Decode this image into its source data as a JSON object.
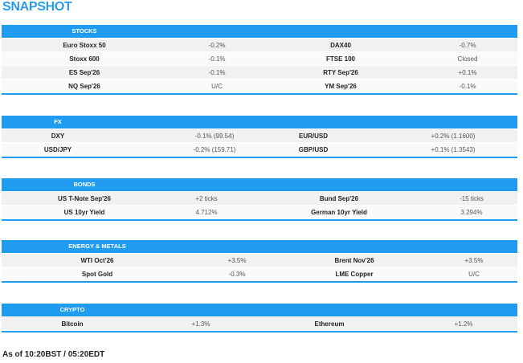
{
  "header": {
    "title": "SNAPSHOT"
  },
  "sections": [
    {
      "title": "STOCKS",
      "rows": [
        [
          "Euro Stoxx 50",
          "-0.2%",
          "DAX40",
          "-0.7%"
        ],
        [
          "Stoxx 600",
          "-0.1%",
          "FTSE 100",
          "Closed"
        ],
        [
          "ES Sep'26",
          "-0.1%",
          "RTY Sep'26",
          "+0.1%"
        ],
        [
          "NQ Sep'26",
          "U/C",
          "YM Sep'26",
          "-0.1%"
        ]
      ]
    },
    {
      "title": "FX",
      "rows": [
        [
          "DXY",
          "-0.1% (99.54)",
          "EUR/USD",
          "+0.2% (1.1600)"
        ],
        [
          "USD/JPY",
          "-0.2% (159.71)",
          "GBP/USD",
          "+0.1% (1.3543)"
        ]
      ]
    },
    {
      "title": "BONDS",
      "rows": [
        [
          "US T-Note Sep'26",
          "+2 ticks",
          "Bund Sep'26",
          "-15 ticks"
        ],
        [
          "US 10yr Yield",
          "4.712%",
          "German 10yr Yield",
          "3.294%"
        ]
      ]
    },
    {
      "title": "ENERGY & METALS",
      "rows": [
        [
          "WTI Oct'26",
          "+3.5%",
          "Brent Nov'26",
          "+3.5%"
        ],
        [
          "Spot Gold",
          "-0.3%",
          "LME Copper",
          "U/C"
        ]
      ]
    },
    {
      "title": "CRYPTO",
      "rows": [
        [
          "Bitcoin",
          "+1.3%",
          "Ethereum",
          "+1.2%"
        ]
      ]
    }
  ],
  "footer": "As of 10:20BST / 05:20EDT"
}
